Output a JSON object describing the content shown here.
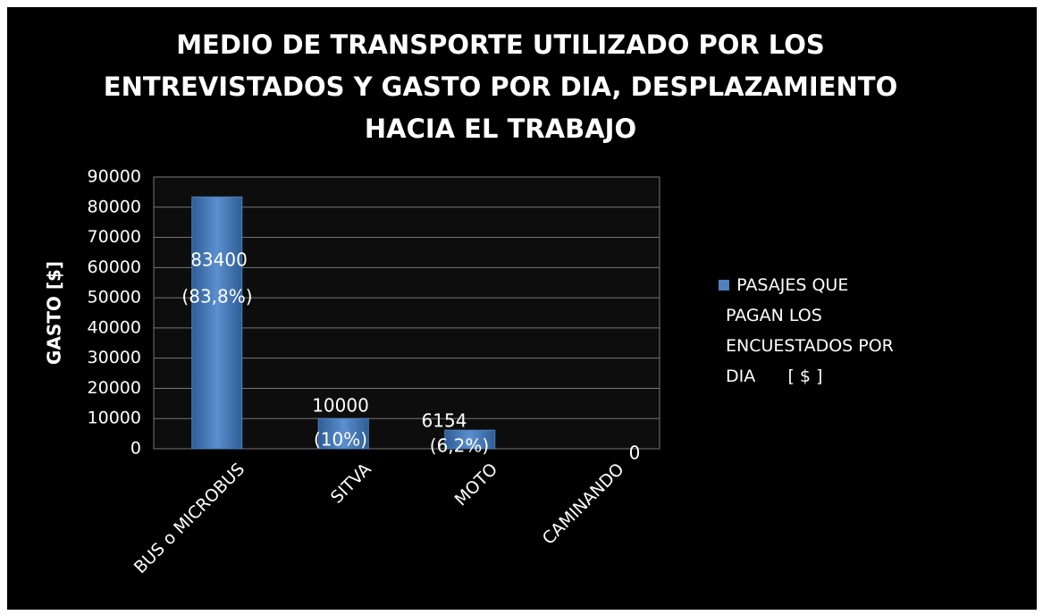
{
  "chart_data": {
    "type": "bar",
    "title": [
      "MEDIO DE TRANSPORTE UTILIZADO POR LOS",
      "ENTREVISTADOS Y GASTO POR DIA, DESPLAZAMIENTO",
      "HACIA EL TRABAJO"
    ],
    "y_label": "GASTO [$]",
    "categories": [
      "BUS o MICROBUS",
      "SITVA",
      "MOTO",
      "CAMINANDO"
    ],
    "series": [
      {
        "name": "PASAJES QUE PAGAN LOS ENCUESTADOS POR DIA      [ $ ]",
        "color": "#4f81bd",
        "values": [
          83400,
          10000,
          6154,
          0
        ]
      }
    ],
    "percent_labels": [
      "(83,8%)",
      "(10%)",
      "(6,2%)",
      null
    ],
    "ylim": [
      0,
      90000
    ],
    "yticks": [
      0,
      10000,
      20000,
      30000,
      40000,
      50000,
      60000,
      70000,
      80000,
      90000
    ],
    "grid": true,
    "legend": "right"
  }
}
